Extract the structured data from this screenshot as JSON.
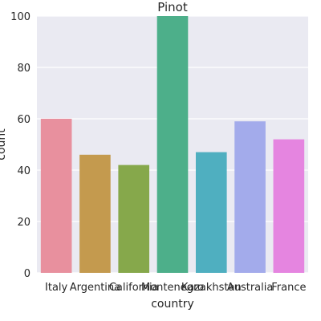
{
  "chart_data": {
    "type": "bar",
    "title": "Pinot",
    "xlabel": "country",
    "ylabel": "count",
    "categories": [
      "Italy",
      "Argentina",
      "California",
      "Montenegro",
      "Kazakhstan",
      "Australia",
      "France"
    ],
    "values": [
      60,
      46,
      42,
      100,
      47,
      59,
      52
    ],
    "colors": [
      "#E8909E",
      "#C49A4E",
      "#86A84B",
      "#4DAF8A",
      "#4FAFC0",
      "#A3ABEB",
      "#E585E0"
    ],
    "ylim": [
      0,
      100
    ],
    "yticks": [
      0,
      20,
      40,
      60,
      80,
      100
    ],
    "grid": true,
    "background": "#EAEAF2"
  }
}
